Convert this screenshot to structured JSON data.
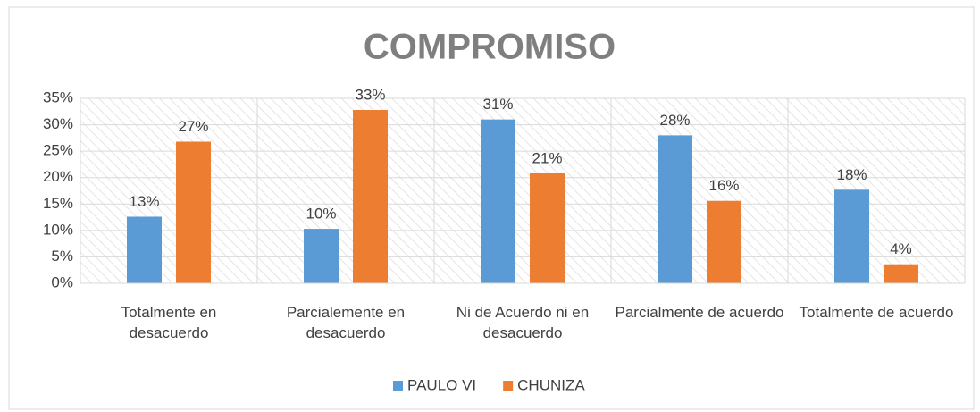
{
  "chart_data": {
    "type": "bar",
    "title": "COMPROMISO",
    "categories": [
      "Totalmente en desacuerdo",
      "Parcialemente en desacuerdo",
      "Ni de Acuerdo ni en desacuerdo",
      "Parcialmente de acuerdo",
      "Totalmente de acuerdo"
    ],
    "series": [
      {
        "name": "PAULO VI",
        "color": "#5b9bd5",
        "values": [
          12.6,
          10.3,
          31,
          28,
          17.7
        ],
        "value_labels": [
          "13%",
          "10%",
          "31%",
          "28%",
          "18%"
        ]
      },
      {
        "name": "CHUNIZA",
        "color": "#ed7d31",
        "values": [
          26.8,
          32.8,
          20.8,
          15.6,
          3.6
        ],
        "value_labels": [
          "27%",
          "33%",
          "21%",
          "16%",
          "4%"
        ]
      }
    ],
    "ylim": [
      0,
      35
    ],
    "yticks": [
      {
        "value": 0,
        "label": "0%"
      },
      {
        "value": 5,
        "label": "5%"
      },
      {
        "value": 10,
        "label": "10%"
      },
      {
        "value": 15,
        "label": "15%"
      },
      {
        "value": 20,
        "label": "20%"
      },
      {
        "value": 25,
        "label": "25%"
      },
      {
        "value": 30,
        "label": "30%"
      },
      {
        "value": 35,
        "label": "35%"
      }
    ],
    "grid": true,
    "legend": "bottom"
  }
}
